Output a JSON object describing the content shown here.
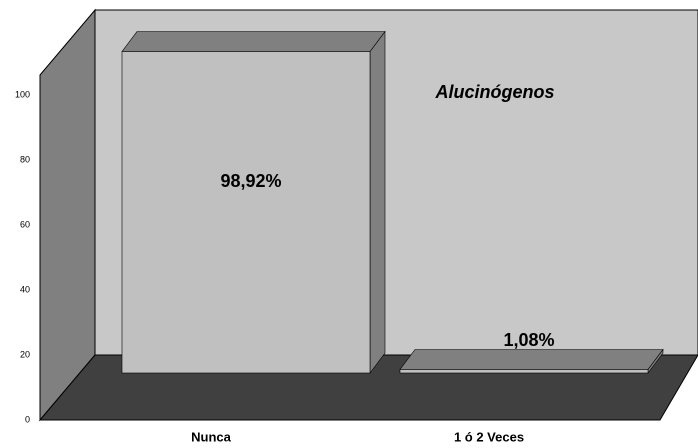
{
  "chart_data": {
    "type": "bar",
    "title": "Alucinógenos",
    "categories": [
      "Nunca",
      "1 ó 2 Veces"
    ],
    "values": [
      98.92,
      1.08
    ],
    "value_labels": [
      "98,92%",
      "1,08%"
    ],
    "color": "#c0c0c0",
    "ylim": [
      0,
      100
    ],
    "yticks": [
      0,
      20,
      40,
      60,
      80,
      100
    ],
    "grid": false
  }
}
